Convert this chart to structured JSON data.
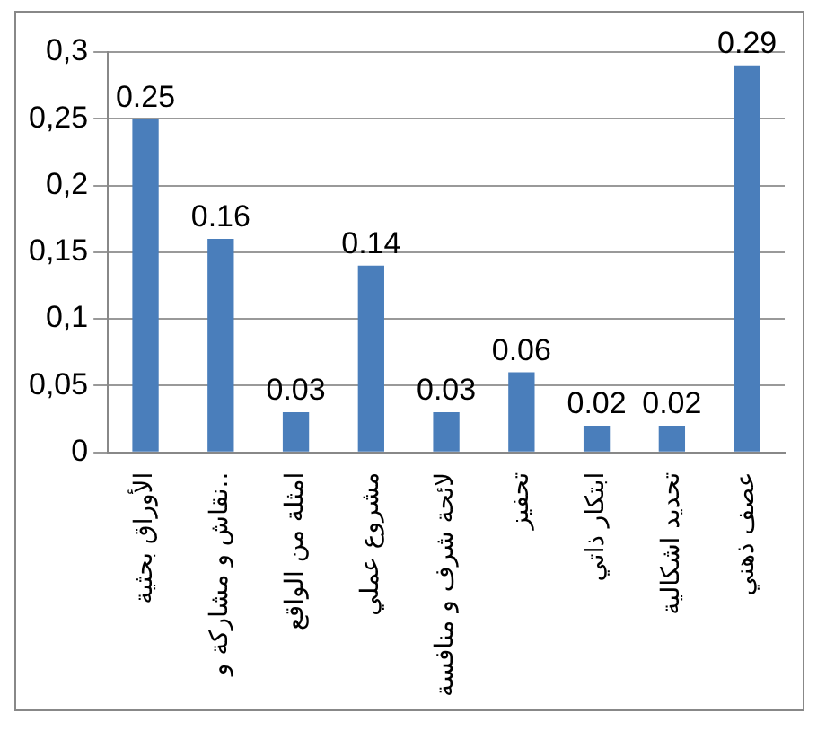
{
  "chart_data": {
    "type": "bar",
    "categories": [
      "الأوراق بحثية",
      "نقاش و مشاركة و..",
      "امثلة من الواقع",
      "مشروع عملي",
      "لائحة شرف و منافسة",
      "تحفيز",
      "ابتكار ذاتي",
      "تحديد اشكالية",
      "عصف ذهني"
    ],
    "values": [
      0.25,
      0.16,
      0.03,
      0.14,
      0.03,
      0.06,
      0.02,
      0.02,
      0.29
    ],
    "color": "#4a7ebb",
    "ylim": [
      0,
      0.3
    ],
    "yticks": [
      {
        "value": 0,
        "label": "0"
      },
      {
        "value": 0.05,
        "label": "0,05"
      },
      {
        "value": 0.1,
        "label": "0,1"
      },
      {
        "value": 0.15,
        "label": "0,15"
      },
      {
        "value": 0.2,
        "label": "0,2"
      },
      {
        "value": 0.25,
        "label": "0,25"
      },
      {
        "value": 0.3,
        "label": "0,3"
      }
    ],
    "grid": "y",
    "data_labels": true
  }
}
